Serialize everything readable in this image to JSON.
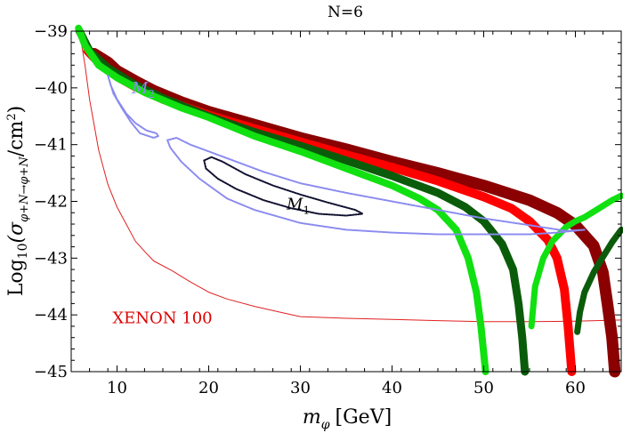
{
  "chart_data": {
    "type": "scatter",
    "title": "N=6",
    "xlabel": "m_φ [GeV]",
    "xlabel_parts": {
      "sym": "m",
      "sub": "φ",
      "unit": "[GeV]"
    },
    "ylabel": "Log10(σ φ+N→φ+N/cm²)",
    "ylabel_parts": {
      "log": "Log",
      "base": "10",
      "open": "(σ",
      "sub": "φ+N→φ+N",
      "slash": "/cm",
      "sup": "2",
      "close": ")"
    },
    "xlim": [
      5,
      65
    ],
    "ylim": [
      -45,
      -39
    ],
    "xticks": [
      10,
      20,
      30,
      40,
      50,
      60
    ],
    "yticks": [
      -45,
      -44,
      -43,
      -42,
      -41,
      -40,
      -39
    ],
    "grid": false,
    "annotations": [
      {
        "label": "M",
        "sub": "2",
        "x": 11.6,
        "y": -40.0,
        "color": "#8a8af0"
      },
      {
        "label": "M",
        "sub": "1",
        "x": 28.5,
        "y": -42.05,
        "color": "#000000"
      },
      {
        "label": "XENON 100",
        "x": 9.5,
        "y": -44.05,
        "color": "#dd0000"
      }
    ],
    "series": [
      {
        "name": "XENON 100 limit",
        "style": "line",
        "color": "#e02020",
        "points": [
          [
            6,
            -39.1
          ],
          [
            6.5,
            -39.6
          ],
          [
            7,
            -40.2
          ],
          [
            8,
            -41.1
          ],
          [
            9,
            -41.7
          ],
          [
            10,
            -42.1
          ],
          [
            11,
            -42.4
          ],
          [
            12,
            -42.7
          ],
          [
            13,
            -42.88
          ],
          [
            14,
            -43.05
          ],
          [
            16,
            -43.22
          ],
          [
            18,
            -43.42
          ],
          [
            20,
            -43.6
          ],
          [
            22,
            -43.72
          ],
          [
            25,
            -43.85
          ],
          [
            28,
            -43.96
          ],
          [
            30,
            -44.03
          ],
          [
            35,
            -44.06
          ],
          [
            40,
            -44.08
          ],
          [
            45,
            -44.1
          ],
          [
            50,
            -44.12
          ],
          [
            55,
            -44.12
          ],
          [
            60,
            -44.11
          ],
          [
            65,
            -44.09
          ]
        ]
      },
      {
        "name": "dark red band",
        "style": "band",
        "color": "#8b0000",
        "width": 13,
        "points": [
          [
            7.5,
            -39.4
          ],
          [
            9,
            -39.55
          ],
          [
            10,
            -39.7
          ],
          [
            12,
            -39.88
          ],
          [
            14,
            -40.05
          ],
          [
            17,
            -40.25
          ],
          [
            20,
            -40.42
          ],
          [
            25,
            -40.65
          ],
          [
            30,
            -40.88
          ],
          [
            35,
            -41.08
          ],
          [
            40,
            -41.3
          ],
          [
            45,
            -41.5
          ],
          [
            50,
            -41.72
          ],
          [
            55,
            -41.98
          ],
          [
            58,
            -42.2
          ],
          [
            60,
            -42.42
          ],
          [
            62,
            -42.78
          ],
          [
            63,
            -43.25
          ],
          [
            63.5,
            -43.8
          ],
          [
            64,
            -44.4
          ],
          [
            64.3,
            -45
          ]
        ]
      },
      {
        "name": "red band",
        "style": "band",
        "color": "#ff0000",
        "width": 10,
        "points": [
          [
            6.8,
            -39.35
          ],
          [
            8,
            -39.55
          ],
          [
            10,
            -39.8
          ],
          [
            12,
            -39.98
          ],
          [
            15,
            -40.2
          ],
          [
            20,
            -40.48
          ],
          [
            25,
            -40.72
          ],
          [
            30,
            -40.95
          ],
          [
            35,
            -41.18
          ],
          [
            40,
            -41.4
          ],
          [
            45,
            -41.64
          ],
          [
            50,
            -41.92
          ],
          [
            53,
            -42.12
          ],
          [
            55,
            -42.35
          ],
          [
            57,
            -42.68
          ],
          [
            58,
            -43.0
          ],
          [
            58.8,
            -43.55
          ],
          [
            59.2,
            -44.2
          ],
          [
            59.6,
            -45
          ]
        ]
      },
      {
        "name": "dark green band",
        "style": "band",
        "color": "#0a5c0a",
        "width": 9,
        "points": [
          [
            5.9,
            -39.0
          ],
          [
            7,
            -39.35
          ],
          [
            9,
            -39.65
          ],
          [
            12,
            -39.95
          ],
          [
            15,
            -40.18
          ],
          [
            20,
            -40.5
          ],
          [
            25,
            -40.78
          ],
          [
            30,
            -41.02
          ],
          [
            35,
            -41.28
          ],
          [
            40,
            -41.55
          ],
          [
            45,
            -41.85
          ],
          [
            48,
            -42.1
          ],
          [
            50,
            -42.35
          ],
          [
            52,
            -42.75
          ],
          [
            53.2,
            -43.2
          ],
          [
            53.8,
            -43.8
          ],
          [
            54.2,
            -44.4
          ],
          [
            54.5,
            -45
          ]
        ]
      },
      {
        "name": "bright green band",
        "style": "band",
        "color": "#11e011",
        "width": 8,
        "points": [
          [
            5.8,
            -38.95
          ],
          [
            6.5,
            -39.25
          ],
          [
            8,
            -39.6
          ],
          [
            10,
            -39.82
          ],
          [
            13,
            -40.08
          ],
          [
            17,
            -40.35
          ],
          [
            20,
            -40.52
          ],
          [
            25,
            -40.85
          ],
          [
            30,
            -41.12
          ],
          [
            35,
            -41.42
          ],
          [
            40,
            -41.72
          ],
          [
            43,
            -41.95
          ],
          [
            45,
            -42.15
          ],
          [
            47,
            -42.5
          ],
          [
            48.3,
            -43.0
          ],
          [
            49.2,
            -43.6
          ],
          [
            49.7,
            -44.2
          ],
          [
            50.2,
            -45
          ]
        ]
      },
      {
        "name": "bright green rising",
        "style": "band",
        "color": "#11e011",
        "width": 7,
        "points": [
          [
            55.2,
            -44.2
          ],
          [
            55.6,
            -43.5
          ],
          [
            56.5,
            -43.0
          ],
          [
            57.5,
            -42.7
          ],
          [
            59,
            -42.45
          ],
          [
            60,
            -42.35
          ],
          [
            61,
            -42.28
          ],
          [
            62,
            -42.18
          ],
          [
            63,
            -42.08
          ],
          [
            64,
            -41.98
          ],
          [
            65,
            -41.9
          ]
        ]
      },
      {
        "name": "dark green rising",
        "style": "band",
        "color": "#0a5c0a",
        "width": 7,
        "points": [
          [
            60.2,
            -44.3
          ],
          [
            60.5,
            -43.95
          ],
          [
            61,
            -43.6
          ],
          [
            62,
            -43.25
          ],
          [
            63,
            -42.98
          ],
          [
            64,
            -42.72
          ],
          [
            65,
            -42.5
          ]
        ]
      },
      {
        "name": "M2 blue contour (upper lobe)",
        "style": "dotted",
        "color": "#8a8af0",
        "points": [
          [
            9,
            -39.78
          ],
          [
            9.3,
            -39.95
          ],
          [
            10,
            -40.2
          ],
          [
            11,
            -40.45
          ],
          [
            12,
            -40.62
          ],
          [
            13.2,
            -40.75
          ],
          [
            14.3,
            -40.8
          ],
          [
            14.5,
            -40.85
          ],
          [
            14,
            -40.88
          ],
          [
            12.5,
            -40.8
          ],
          [
            11.5,
            -40.6
          ],
          [
            10.5,
            -40.35
          ],
          [
            9.6,
            -40.1
          ],
          [
            9,
            -39.78
          ]
        ]
      },
      {
        "name": "M2 blue contour (lower lobe)",
        "style": "dotted",
        "color": "#8a8af0",
        "points": [
          [
            15.5,
            -40.92
          ],
          [
            16.5,
            -40.88
          ],
          [
            18,
            -41.0
          ],
          [
            20,
            -41.12
          ],
          [
            23,
            -41.3
          ],
          [
            26,
            -41.48
          ],
          [
            30,
            -41.68
          ],
          [
            35,
            -41.85
          ],
          [
            40,
            -42.0
          ],
          [
            45,
            -42.15
          ],
          [
            50,
            -42.3
          ],
          [
            55,
            -42.42
          ],
          [
            59,
            -42.52
          ],
          [
            61,
            -42.5
          ],
          [
            58,
            -42.55
          ],
          [
            55,
            -42.58
          ],
          [
            50,
            -42.58
          ],
          [
            45,
            -42.58
          ],
          [
            40,
            -42.55
          ],
          [
            35,
            -42.5
          ],
          [
            30,
            -42.38
          ],
          [
            25,
            -42.15
          ],
          [
            22,
            -41.95
          ],
          [
            19,
            -41.6
          ],
          [
            17,
            -41.3
          ],
          [
            15.8,
            -41.05
          ],
          [
            15.5,
            -40.92
          ]
        ]
      },
      {
        "name": "M1 black contour",
        "style": "dotted",
        "color": "#101030",
        "points": [
          [
            19.5,
            -41.28
          ],
          [
            20.3,
            -41.22
          ],
          [
            21.5,
            -41.3
          ],
          [
            24,
            -41.52
          ],
          [
            27,
            -41.72
          ],
          [
            30,
            -41.88
          ],
          [
            33,
            -42.02
          ],
          [
            36,
            -42.15
          ],
          [
            36.8,
            -42.22
          ],
          [
            35,
            -42.25
          ],
          [
            32,
            -42.22
          ],
          [
            29,
            -42.12
          ],
          [
            26,
            -41.98
          ],
          [
            23,
            -41.78
          ],
          [
            21,
            -41.6
          ],
          [
            19.7,
            -41.42
          ],
          [
            19.5,
            -41.28
          ]
        ]
      }
    ]
  }
}
